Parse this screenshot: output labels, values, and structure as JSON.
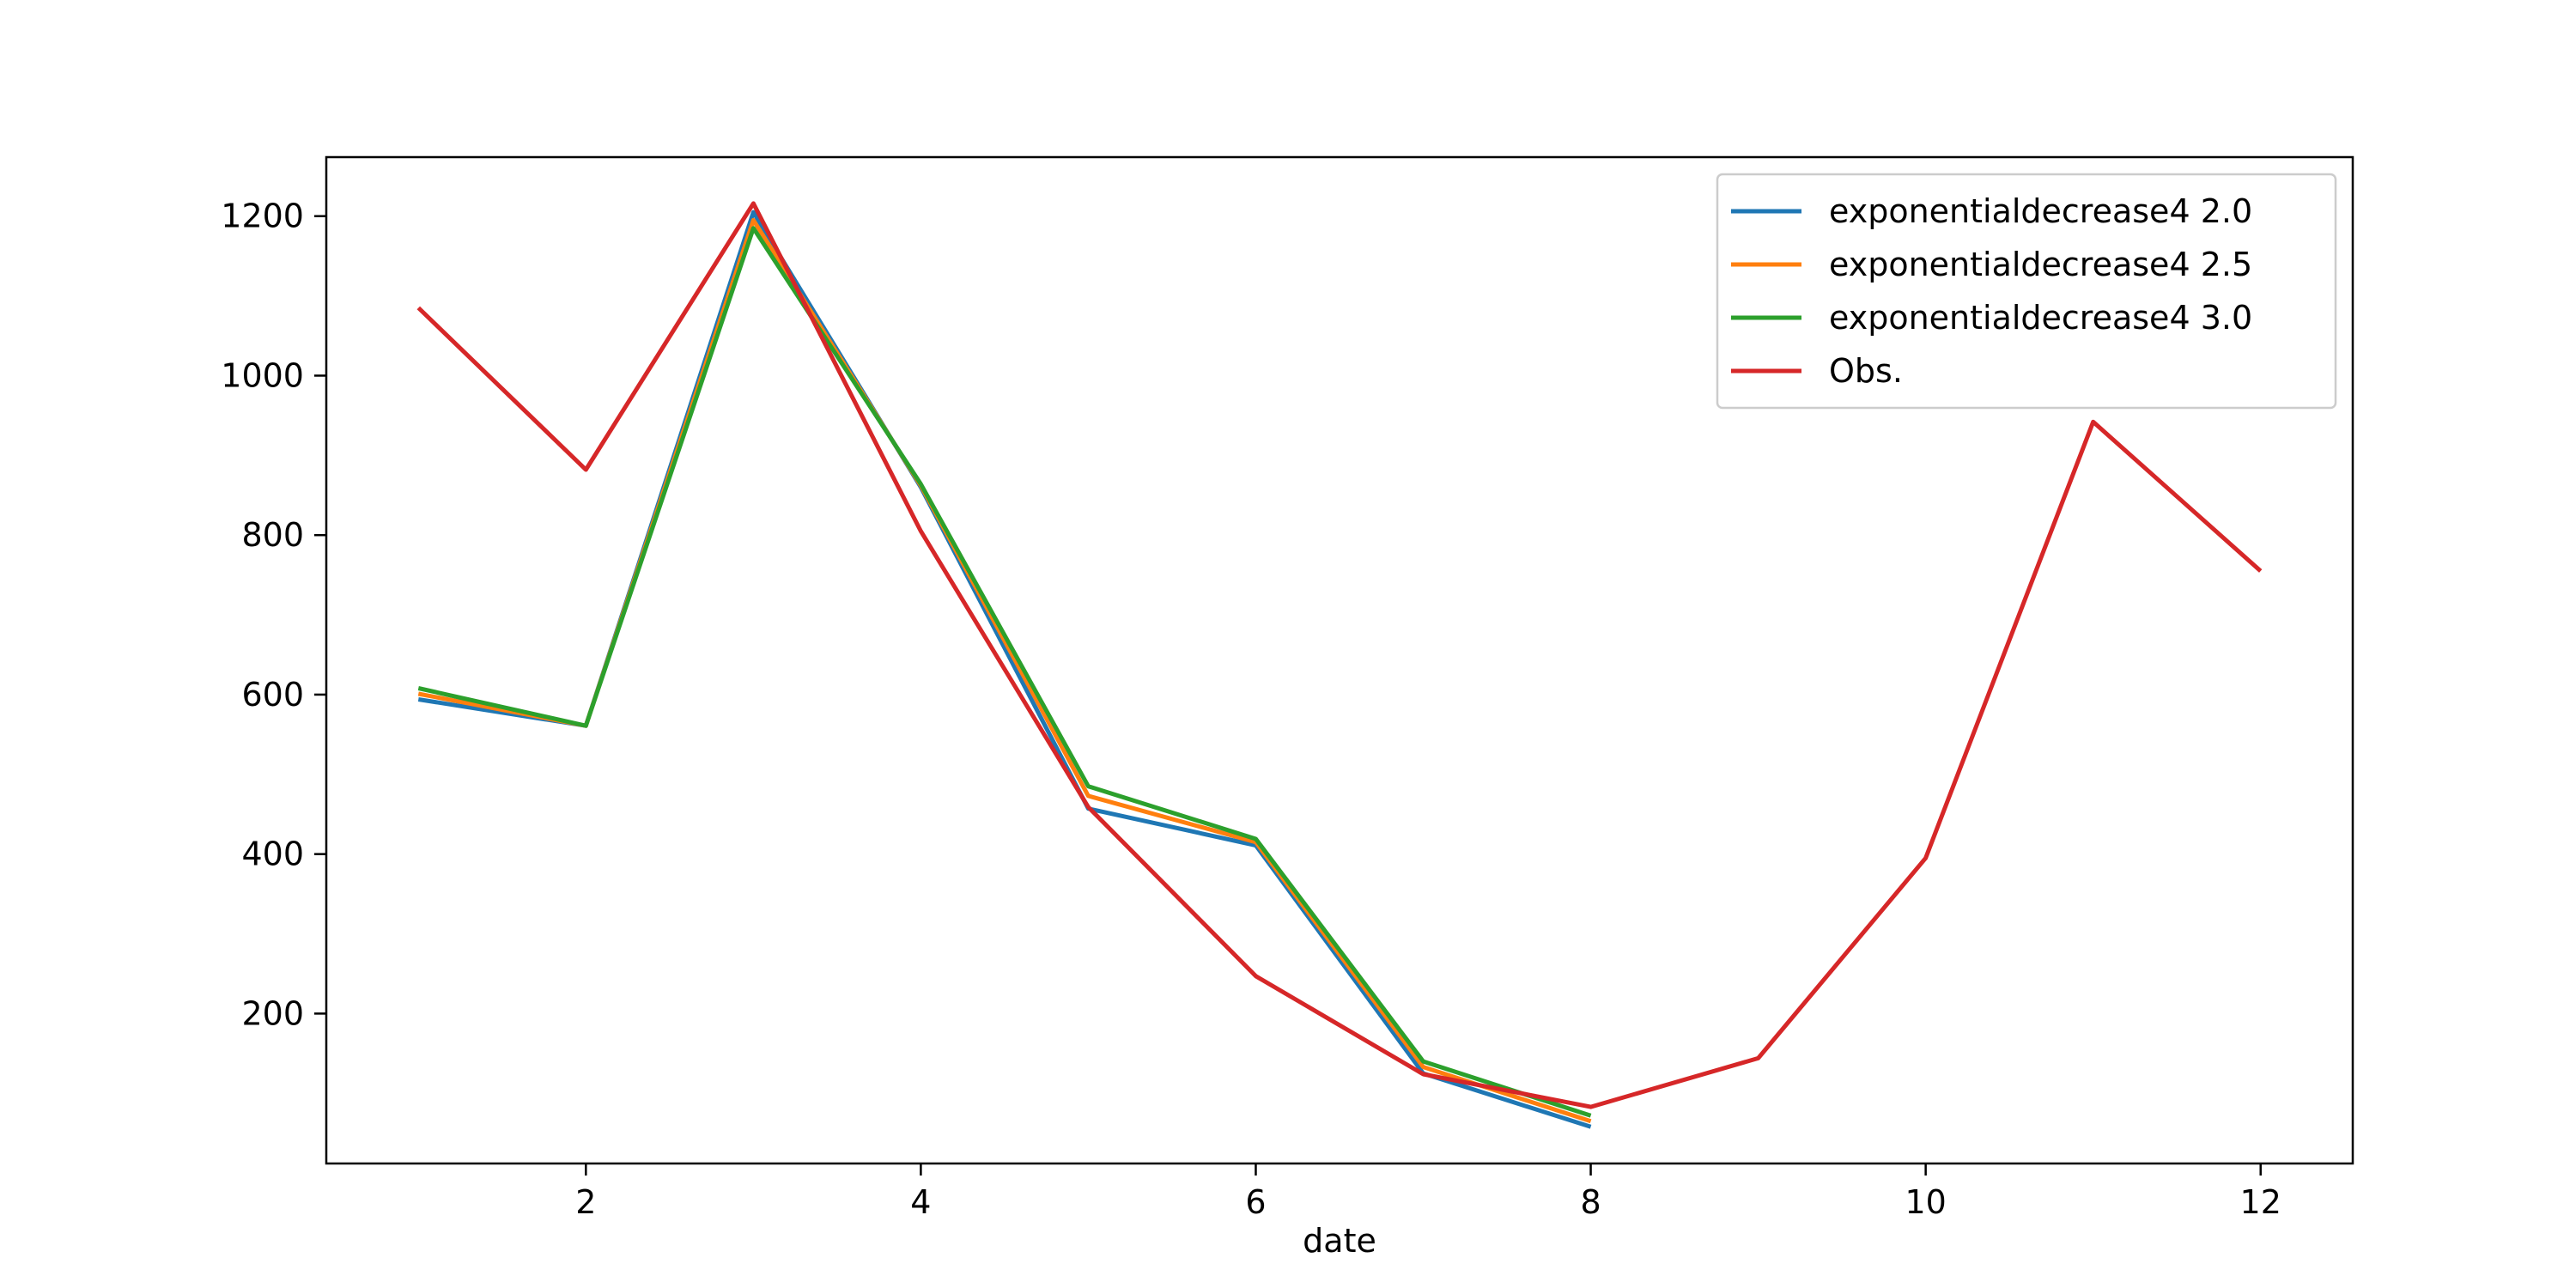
{
  "chart_data": {
    "type": "line",
    "title": "",
    "xlabel": "date",
    "ylabel": "",
    "xlim": [
      0.45,
      12.55
    ],
    "ylim": [
      12,
      1274
    ],
    "x_ticks": [
      2,
      4,
      6,
      8,
      10,
      12
    ],
    "y_ticks": [
      200,
      400,
      600,
      800,
      1000,
      1200
    ],
    "grid": false,
    "legend_position": "top-right",
    "series": [
      {
        "name": "exponentialdecrease4 2.0",
        "color": "#1f77b4",
        "x": [
          1,
          2,
          3,
          4,
          5,
          6,
          7,
          8
        ],
        "y": [
          594,
          561,
          1205,
          860,
          457,
          411,
          125,
          58
        ]
      },
      {
        "name": "exponentialdecrease4 2.5",
        "color": "#ff7f0e",
        "x": [
          1,
          2,
          3,
          4,
          5,
          6,
          7,
          8
        ],
        "y": [
          601,
          561,
          1195,
          862,
          473,
          415,
          133,
          65
        ]
      },
      {
        "name": "exponentialdecrease4 3.0",
        "color": "#2ca02c",
        "x": [
          1,
          2,
          3,
          4,
          5,
          6,
          7,
          8
        ],
        "y": [
          608,
          561,
          1185,
          864,
          485,
          419,
          140,
          72
        ]
      },
      {
        "name": "Obs.",
        "color": "#d62728",
        "x": [
          1,
          2,
          3,
          4,
          5,
          6,
          7,
          8,
          9,
          10,
          11,
          12
        ],
        "y": [
          1085,
          882,
          1216,
          805,
          459,
          247,
          124,
          83,
          144,
          395,
          942,
          755
        ]
      }
    ]
  }
}
